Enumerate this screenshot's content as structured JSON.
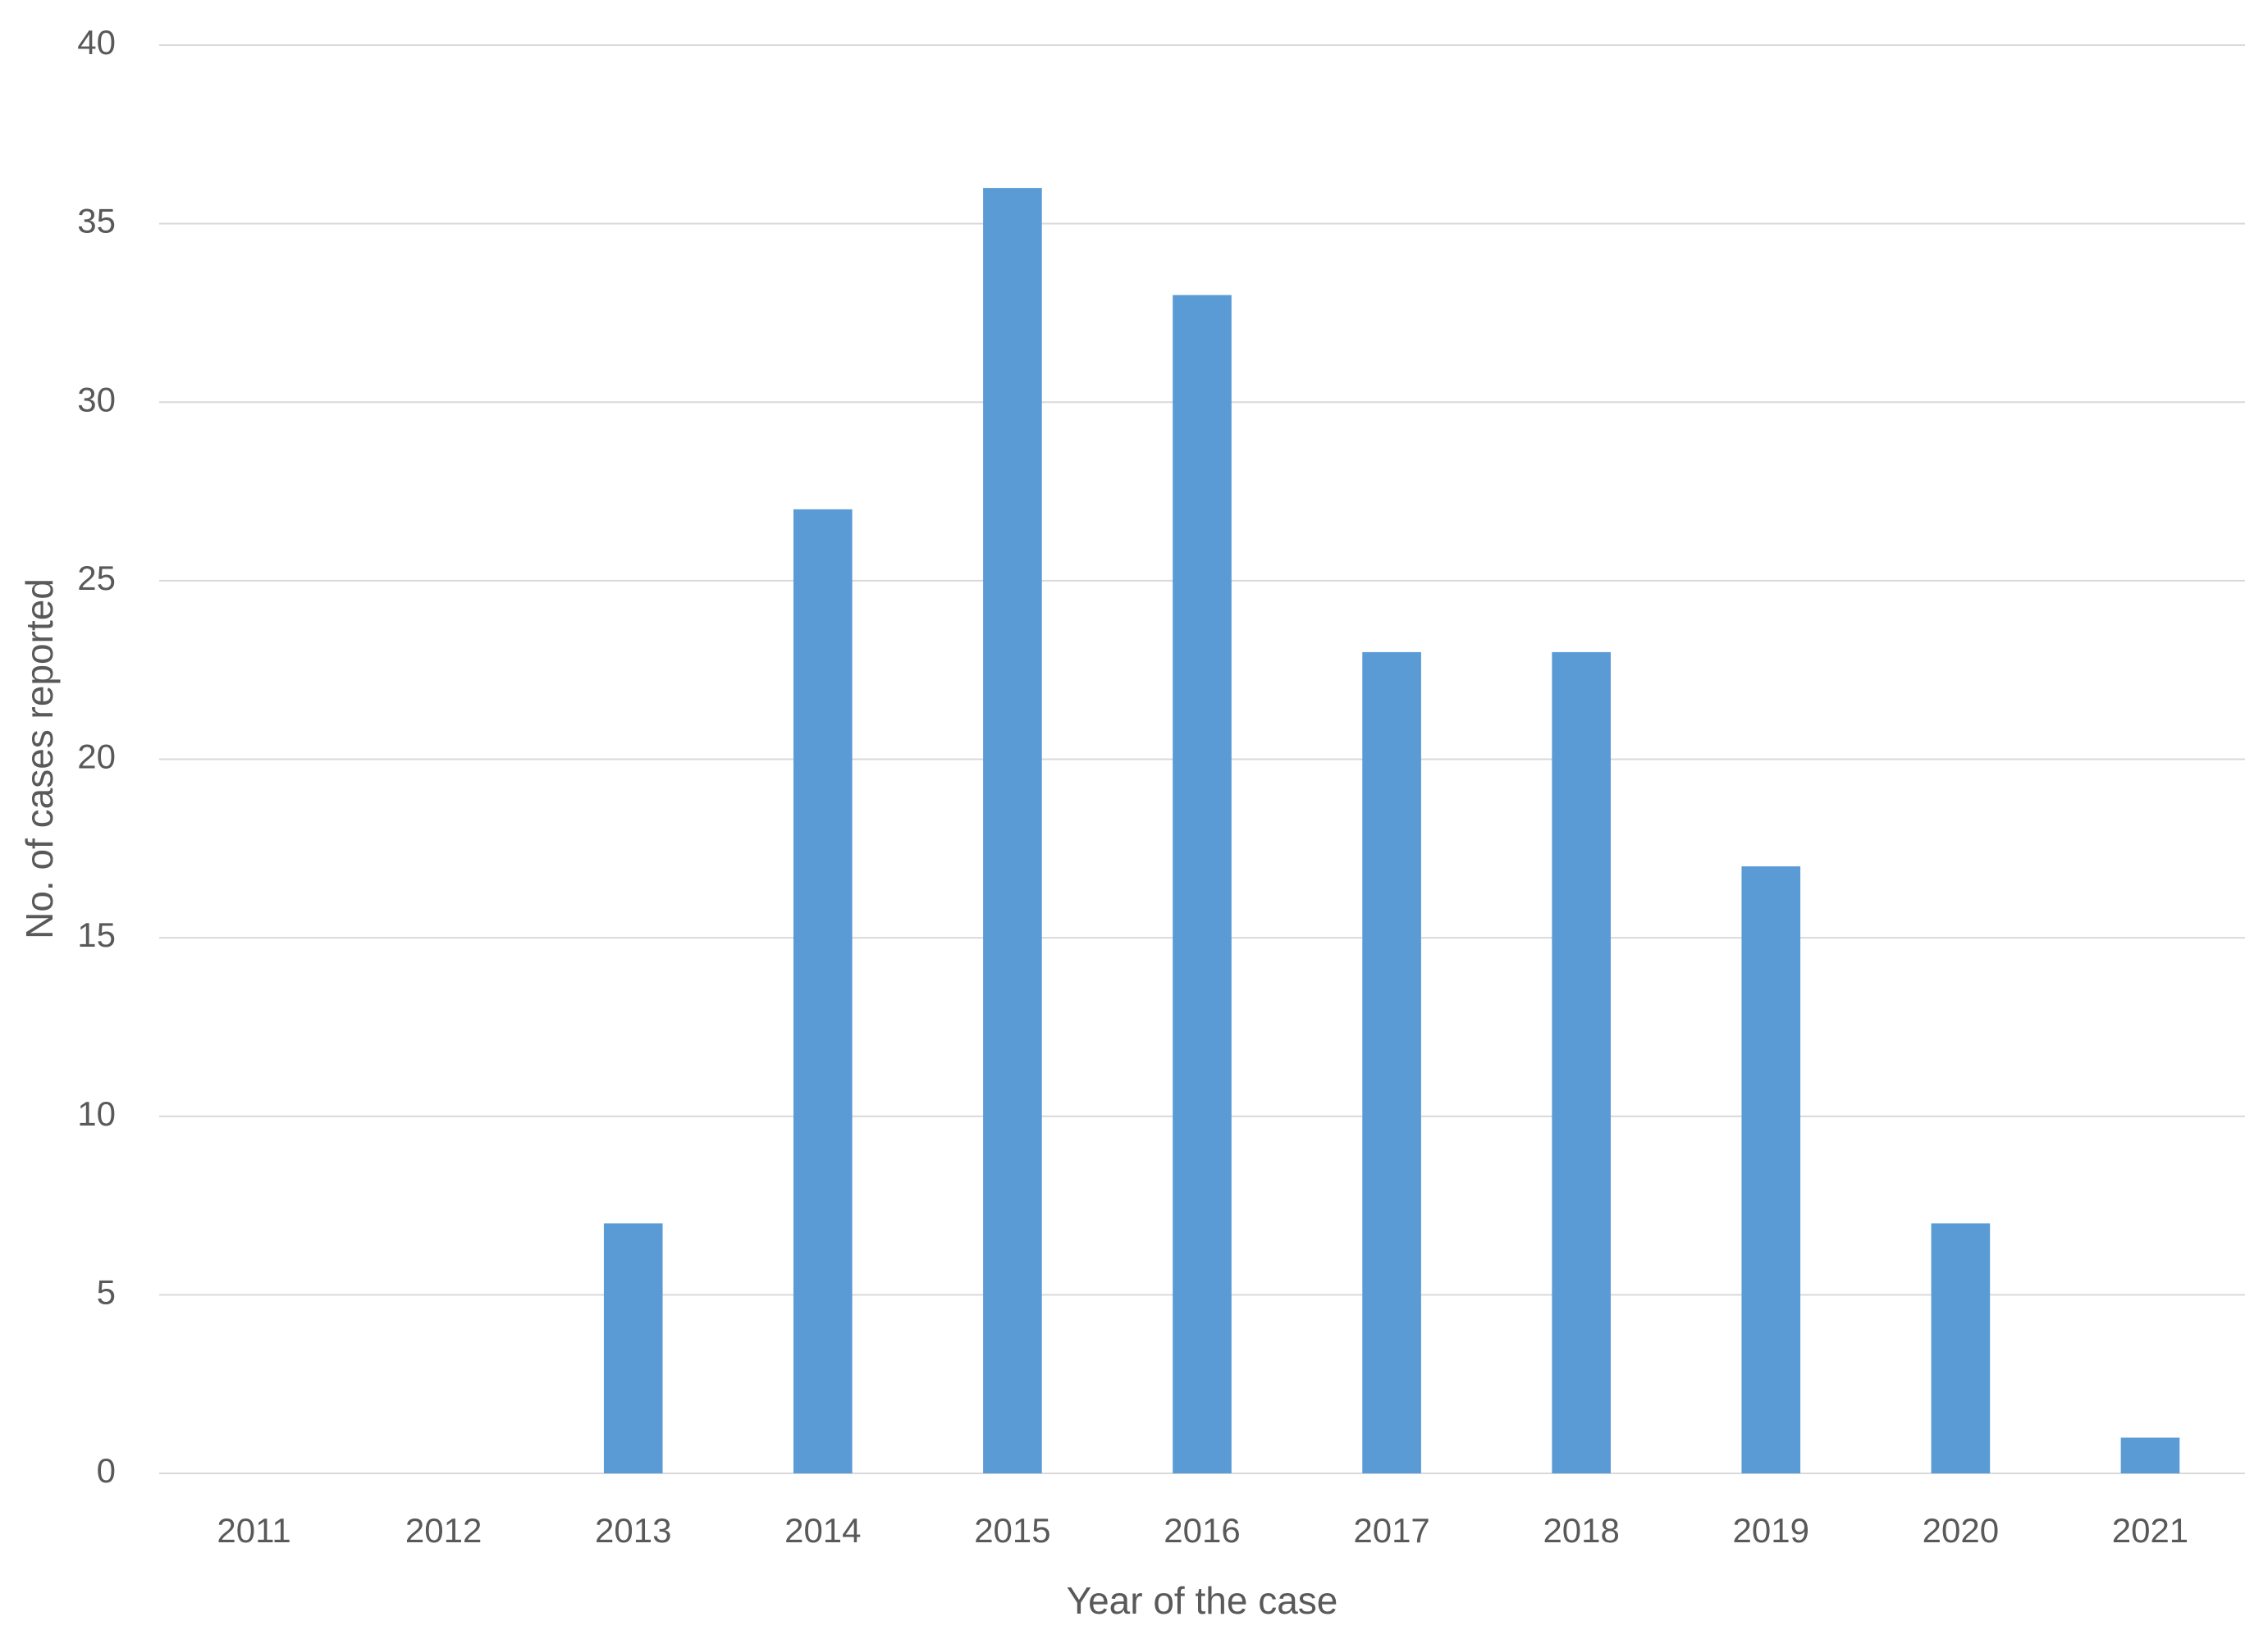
{
  "chart_data": {
    "type": "bar",
    "x_label": "Year of the case",
    "y_label": "No. of cases reported",
    "categories": [
      "2011",
      "2012",
      "2013",
      "2014",
      "2015",
      "2016",
      "2017",
      "2018",
      "2019",
      "2020",
      "2021"
    ],
    "values": [
      0,
      0,
      7,
      27,
      36,
      33,
      23,
      23,
      17,
      7,
      1
    ],
    "color": "#5b9bd5",
    "ylim": [
      0,
      40
    ],
    "yticks": [
      0,
      5,
      10,
      15,
      20,
      25,
      30,
      35,
      40
    ],
    "grid": true
  }
}
